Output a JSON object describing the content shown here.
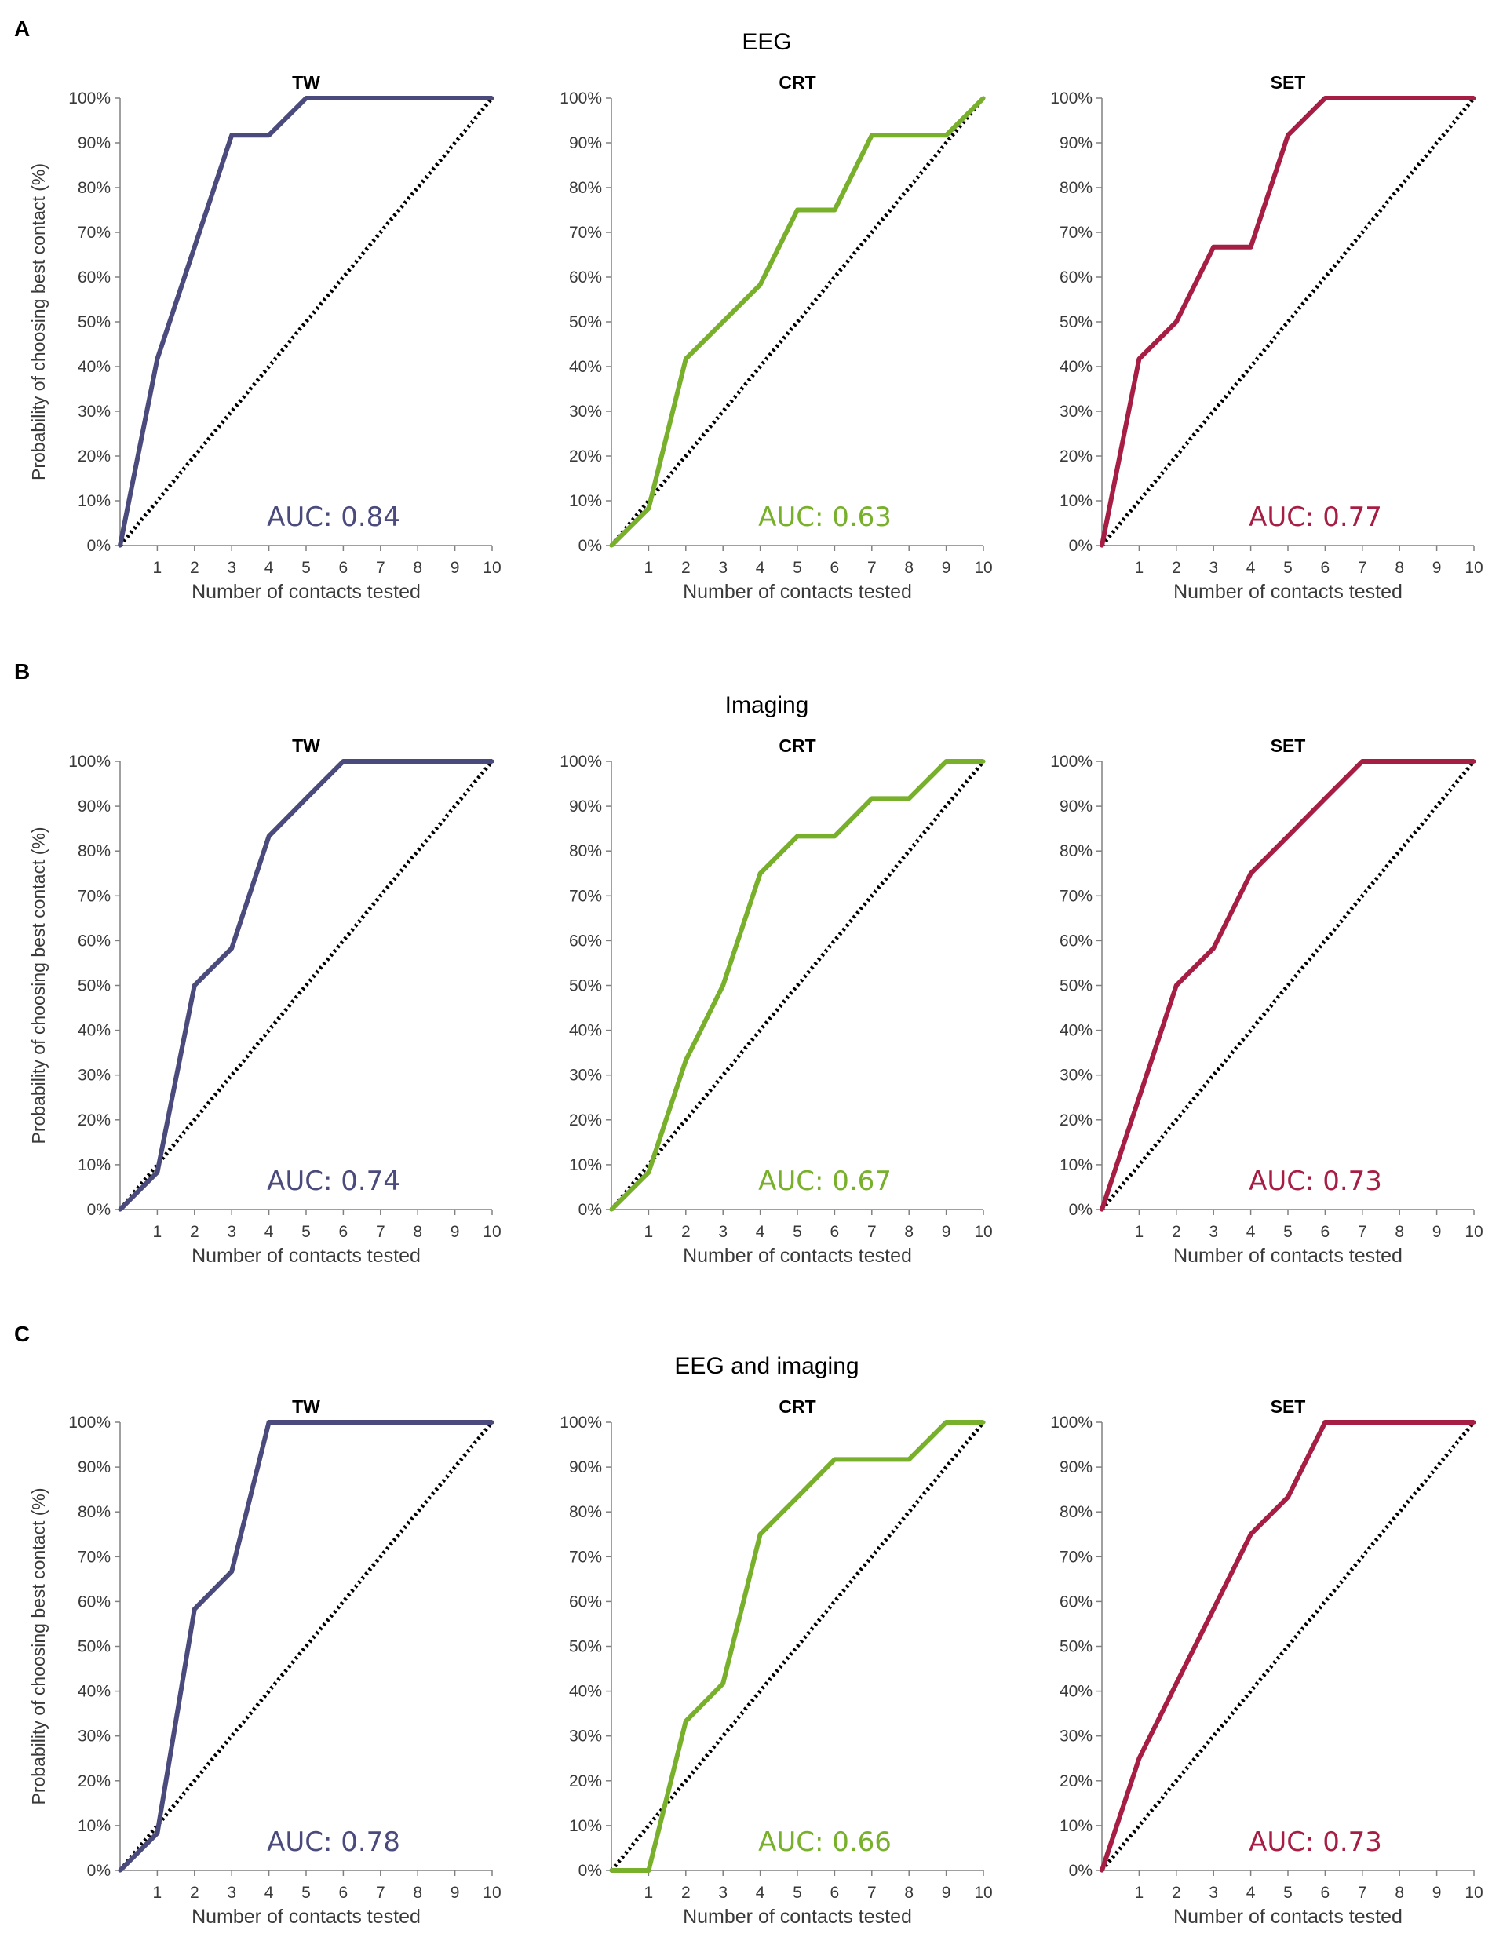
{
  "colors": {
    "TW": "#4a4a7c",
    "CRT": "#78b02c",
    "SET": "#a61e43",
    "chance": "#000000",
    "axis": "#808080",
    "text": "#3a3a3a"
  },
  "rows": [
    {
      "label": "A",
      "title": "EEG"
    },
    {
      "label": "B",
      "title": "Imaging"
    },
    {
      "label": "C",
      "title": "EEG and imaging"
    }
  ],
  "axis": {
    "xlabel": "Number of contacts tested",
    "ylabel": "Probability of choosing best contact (%)",
    "x_ticks": [
      "1",
      "2",
      "3",
      "4",
      "5",
      "6",
      "7",
      "8",
      "9",
      "10"
    ],
    "y_ticks": [
      "0%",
      "10%",
      "20%",
      "30%",
      "40%",
      "50%",
      "60%",
      "70%",
      "80%",
      "90%",
      "100%"
    ]
  },
  "chart_data": [
    {
      "type": "line",
      "row": "A",
      "title": "TW",
      "series_key": "TW",
      "xlim": [
        0,
        10
      ],
      "ylim": [
        0,
        100
      ],
      "auc_label": "AUC: 0.84",
      "x": [
        0,
        1,
        2,
        3,
        4,
        5,
        6,
        7,
        8,
        9,
        10
      ],
      "values": [
        0,
        41.7,
        66.7,
        91.7,
        91.7,
        100,
        100,
        100,
        100,
        100,
        100
      ]
    },
    {
      "type": "line",
      "row": "A",
      "title": "CRT",
      "series_key": "CRT",
      "xlim": [
        0,
        10
      ],
      "ylim": [
        0,
        100
      ],
      "auc_label": "AUC: 0.63",
      "x": [
        0,
        1,
        2,
        3,
        4,
        5,
        6,
        7,
        8,
        9,
        10
      ],
      "values": [
        0,
        8.3,
        41.7,
        50,
        58.3,
        75,
        75,
        91.7,
        91.7,
        91.7,
        100
      ]
    },
    {
      "type": "line",
      "row": "A",
      "title": "SET",
      "series_key": "SET",
      "xlim": [
        0,
        10
      ],
      "ylim": [
        0,
        100
      ],
      "auc_label": "AUC: 0.77",
      "x": [
        0,
        1,
        2,
        3,
        4,
        5,
        6,
        7,
        8,
        9,
        10
      ],
      "values": [
        0,
        41.7,
        50,
        66.7,
        66.7,
        91.7,
        100,
        100,
        100,
        100,
        100
      ]
    },
    {
      "type": "line",
      "row": "B",
      "title": "TW",
      "series_key": "TW",
      "xlim": [
        0,
        10
      ],
      "ylim": [
        0,
        100
      ],
      "auc_label": "AUC: 0.74",
      "x": [
        0,
        1,
        2,
        3,
        4,
        5,
        6,
        7,
        8,
        9,
        10
      ],
      "values": [
        0,
        8.3,
        50,
        58.3,
        83.3,
        91.7,
        100,
        100,
        100,
        100,
        100
      ]
    },
    {
      "type": "line",
      "row": "B",
      "title": "CRT",
      "series_key": "CRT",
      "xlim": [
        0,
        10
      ],
      "ylim": [
        0,
        100
      ],
      "auc_label": "AUC: 0.67",
      "x": [
        0,
        1,
        2,
        3,
        4,
        5,
        6,
        7,
        8,
        9,
        10
      ],
      "values": [
        0,
        8.3,
        33.3,
        50,
        75,
        83.3,
        83.3,
        91.7,
        91.7,
        100,
        100
      ]
    },
    {
      "type": "line",
      "row": "B",
      "title": "SET",
      "series_key": "SET",
      "xlim": [
        0,
        10
      ],
      "ylim": [
        0,
        100
      ],
      "auc_label": "AUC: 0.73",
      "x": [
        0,
        1,
        2,
        3,
        4,
        5,
        6,
        7,
        8,
        9,
        10
      ],
      "values": [
        0,
        25,
        50,
        58.3,
        75,
        83.3,
        91.7,
        100,
        100,
        100,
        100
      ]
    },
    {
      "type": "line",
      "row": "C",
      "title": "TW",
      "series_key": "TW",
      "xlim": [
        0,
        10
      ],
      "ylim": [
        0,
        100
      ],
      "auc_label": "AUC: 0.78",
      "x": [
        0,
        1,
        2,
        3,
        4,
        5,
        6,
        7,
        8,
        9,
        10
      ],
      "values": [
        0,
        8.3,
        58.3,
        66.7,
        100,
        100,
        100,
        100,
        100,
        100,
        100
      ]
    },
    {
      "type": "line",
      "row": "C",
      "title": "CRT",
      "series_key": "CRT",
      "xlim": [
        0,
        10
      ],
      "ylim": [
        0,
        100
      ],
      "auc_label": "AUC: 0.66",
      "x": [
        0,
        1,
        2,
        3,
        4,
        5,
        6,
        7,
        8,
        9,
        10
      ],
      "values": [
        0,
        0,
        33.3,
        41.7,
        75,
        83.3,
        91.7,
        91.7,
        91.7,
        100,
        100
      ]
    },
    {
      "type": "line",
      "row": "C",
      "title": "SET",
      "series_key": "SET",
      "xlim": [
        0,
        10
      ],
      "ylim": [
        0,
        100
      ],
      "auc_label": "AUC: 0.73",
      "x": [
        0,
        1,
        2,
        3,
        4,
        5,
        6,
        7,
        8,
        9,
        10
      ],
      "values": [
        0,
        25,
        41.7,
        58.3,
        75,
        83.3,
        100,
        100,
        100,
        100,
        100
      ]
    }
  ]
}
